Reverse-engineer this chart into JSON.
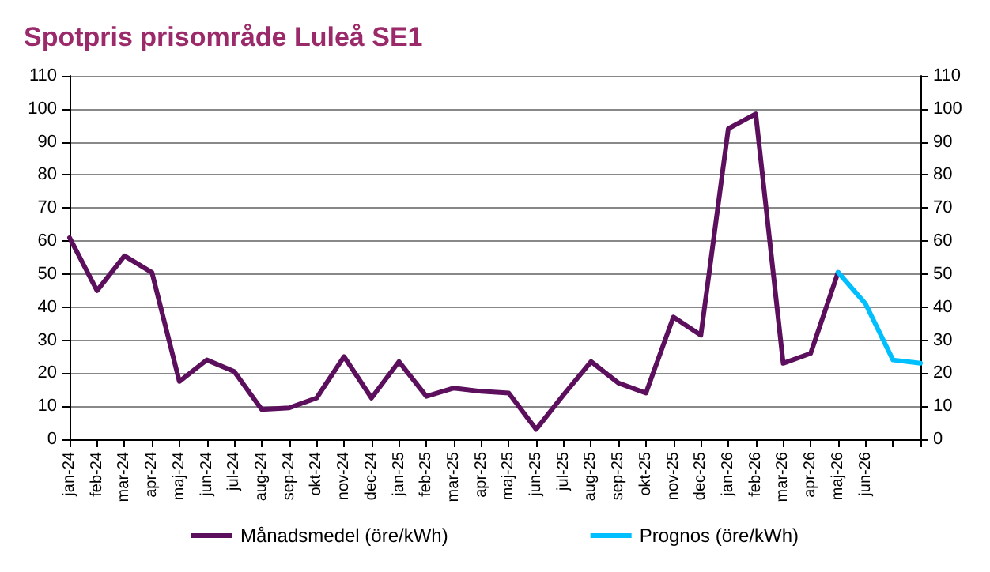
{
  "chart_data": {
    "type": "line",
    "title": "Spotpris prisområde Luleå SE1",
    "categories": [
      "jan-24",
      "feb-24",
      "mar-24",
      "apr-24",
      "maj-24",
      "jun-24",
      "jul-24",
      "aug-24",
      "sep-24",
      "okt-24",
      "nov-24",
      "dec-24",
      "jan-25",
      "feb-25",
      "mar-25",
      "apr-25",
      "maj-25",
      "jun-25",
      "jul-25",
      "aug-25",
      "sep-25",
      "okt-25",
      "nov-25",
      "dec-25",
      "jan-26",
      "feb-26",
      "mar-26",
      "apr-26",
      "maj-26",
      "jun-26",
      null,
      null
    ],
    "series": [
      {
        "name": "Månadsmedel (öre/kWh)",
        "color": "#5c0f5c",
        "values": [
          61,
          45,
          55.5,
          50.5,
          17.5,
          24,
          20.5,
          9,
          9.5,
          12.5,
          25,
          12.5,
          23.5,
          13,
          15.5,
          14.5,
          14,
          3,
          13.5,
          23.5,
          17,
          14,
          37,
          31.5,
          94,
          98.5,
          23,
          26,
          50.5,
          null,
          null,
          null
        ]
      },
      {
        "name": "Prognos (öre/kWh)",
        "color": "#00bfff",
        "values": [
          null,
          null,
          null,
          null,
          null,
          null,
          null,
          null,
          null,
          null,
          null,
          null,
          null,
          null,
          null,
          null,
          null,
          null,
          null,
          null,
          null,
          null,
          null,
          null,
          null,
          null,
          null,
          null,
          50.5,
          41,
          24,
          23
        ]
      }
    ],
    "ylim": [
      0,
      110
    ],
    "yticks": [
      0,
      10,
      20,
      30,
      40,
      50,
      60,
      70,
      80,
      90,
      100,
      110
    ],
    "y2lim": [
      0,
      110
    ],
    "y2ticks": [
      0,
      10,
      20,
      30,
      40,
      50,
      60,
      70,
      80,
      90,
      100,
      110
    ],
    "grid": "y",
    "legend": "bottom",
    "marker": "none",
    "line_style": "solid"
  }
}
